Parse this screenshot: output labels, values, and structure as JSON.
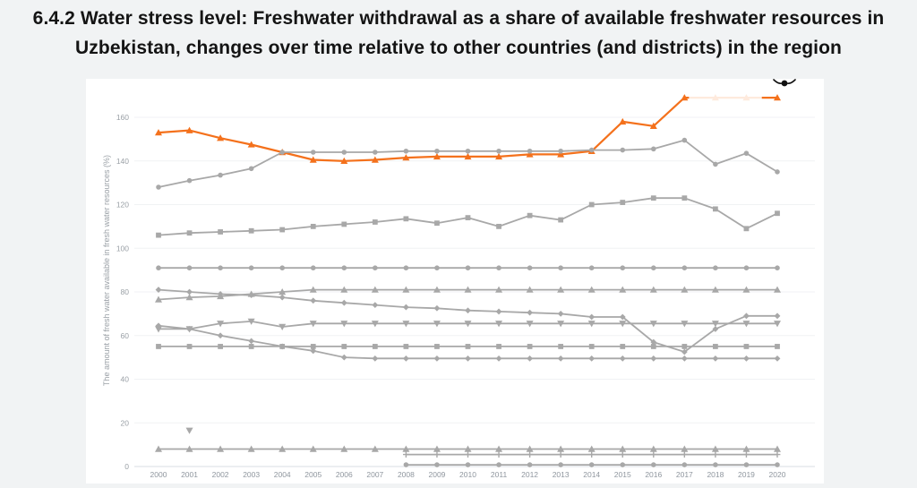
{
  "title": {
    "line1": "6.4.2 Water stress level: Freshwater withdrawal as a share of available freshwater resources in",
    "line2": "Uzbekistan, changes over time relative to other countries (and districts) in the region"
  },
  "colors": {
    "page_background": "#f1f3f4",
    "card_background": "#ffffff",
    "highlight_orange": "#f4711c",
    "gray_line": "#a8a8a8",
    "gray_marker": "#9b9b9b",
    "gridline": "#f0f2f4",
    "axis_line": "#d9dde3",
    "tick_label": "#8f969e",
    "axis_title": "#9aa0a6"
  },
  "chart_data": {
    "type": "line",
    "title": "6.4.2 Water stress level: Freshwater withdrawal as a share of available freshwater resources in Uzbekistan, changes over time relative to other countries (and districts) in the region",
    "xlabel": "",
    "ylabel": "The amount of fresh water available in fresh water resources (%)",
    "x": [
      2000,
      2001,
      2002,
      2003,
      2004,
      2005,
      2006,
      2007,
      2008,
      2009,
      2010,
      2011,
      2012,
      2013,
      2014,
      2015,
      2016,
      2017,
      2018,
      2019,
      2020
    ],
    "y_ticks": [
      0,
      20,
      40,
      60,
      80,
      100,
      120,
      140,
      160
    ],
    "ylim": [
      0,
      178
    ],
    "grid": "horizontal",
    "legend": "none",
    "series": [
      {
        "name": "highlighted-country-orange",
        "color": "#f4711c",
        "marker": "triangle-up",
        "width": 2.2,
        "values": [
          153,
          154,
          150.5,
          147.5,
          144,
          140.5,
          140,
          140.5,
          141.5,
          142,
          142,
          142,
          143,
          143,
          144.5,
          158,
          156,
          169,
          169,
          169,
          169
        ],
        "fade_segment": {
          "from_x": 2017,
          "to_x": 2019.5,
          "overlay_opacity": 0.85
        }
      },
      {
        "name": "gray-circle-rising-145",
        "color": "#a8a8a8",
        "marker": "circle",
        "width": 1.8,
        "values": [
          128,
          131,
          133.5,
          136.5,
          144,
          144,
          144,
          144,
          144.5,
          144.5,
          144.5,
          144.5,
          144.5,
          144.5,
          145,
          145,
          145.5,
          149.5,
          138.5,
          143.5,
          135
        ]
      },
      {
        "name": "gray-square-mid-110",
        "color": "#a8a8a8",
        "marker": "square",
        "width": 1.8,
        "values": [
          106,
          107,
          107.5,
          108,
          108.5,
          110,
          111,
          112,
          113.5,
          111.5,
          114,
          110,
          115,
          113,
          120,
          121,
          123,
          123,
          118,
          109,
          116
        ]
      },
      {
        "name": "gray-circle-flat-91",
        "color": "#a8a8a8",
        "marker": "circle",
        "width": 1.8,
        "values": [
          91,
          91,
          91,
          91,
          91,
          91,
          91,
          91,
          91,
          91,
          91,
          91,
          91,
          91,
          91,
          91,
          91,
          91,
          91,
          91,
          91
        ]
      },
      {
        "name": "gray-triangle-flat-81",
        "color": "#a8a8a8",
        "marker": "triangle-up",
        "width": 1.8,
        "values": [
          76.5,
          77.5,
          78,
          79,
          80,
          81,
          81,
          81,
          81,
          81,
          81,
          81,
          81,
          81,
          81,
          81,
          81,
          81,
          81,
          81,
          81
        ]
      },
      {
        "name": "gray-diamond-declining",
        "color": "#a8a8a8",
        "marker": "diamond",
        "width": 1.8,
        "values": [
          81,
          80,
          79,
          78.5,
          77.5,
          76,
          75,
          74,
          73,
          72.5,
          71.5,
          71,
          70.5,
          70,
          68.5,
          68.5,
          57,
          52.5,
          63,
          69,
          69
        ]
      },
      {
        "name": "gray-tridown-flat-65",
        "color": "#a8a8a8",
        "marker": "triangle-down",
        "width": 1.8,
        "values": [
          63,
          63,
          65.5,
          66.5,
          64,
          65.5,
          65.5,
          65.5,
          65.5,
          65.5,
          65.5,
          65.5,
          65.5,
          65.5,
          65.5,
          65.5,
          65.5,
          65.5,
          65.5,
          65.5,
          65.5
        ]
      },
      {
        "name": "gray-square-flat-55",
        "color": "#a8a8a8",
        "marker": "square",
        "width": 1.8,
        "values": [
          55,
          55,
          55,
          55,
          55,
          55,
          55,
          55,
          55,
          55,
          55,
          55,
          55,
          55,
          55,
          55,
          55,
          55,
          55,
          55,
          55
        ]
      },
      {
        "name": "gray-diamond-to-50",
        "color": "#a8a8a8",
        "marker": "diamond",
        "width": 1.8,
        "values": [
          64.5,
          63,
          60,
          57.5,
          55,
          53,
          50,
          49.5,
          49.5,
          49.5,
          49.5,
          49.5,
          49.5,
          49.5,
          49.5,
          49.5,
          49.5,
          49.5,
          49.5,
          49.5,
          49.5
        ]
      },
      {
        "name": "gray-triangle-flat-8",
        "color": "#a8a8a8",
        "marker": "triangle-up",
        "width": 1.8,
        "values": [
          8,
          8,
          8,
          8,
          8,
          8,
          8,
          8,
          8,
          8,
          8,
          8,
          8,
          8,
          8,
          8,
          8,
          8,
          8,
          8,
          8
        ]
      },
      {
        "name": "gray-plus-flat-5",
        "color": "#a8a8a8",
        "marker": "plus",
        "width": 1.8,
        "values": [
          null,
          null,
          null,
          null,
          null,
          null,
          null,
          null,
          5.5,
          5.5,
          5.5,
          5.5,
          5.5,
          5.5,
          5.5,
          5.5,
          5.5,
          5.5,
          5.5,
          5.5,
          5.5
        ]
      },
      {
        "name": "gray-circle-flat-1",
        "color": "#a8a8a8",
        "marker": "circle",
        "width": 1.8,
        "values": [
          null,
          null,
          null,
          null,
          null,
          null,
          null,
          null,
          0.8,
          0.8,
          0.8,
          0.8,
          0.8,
          0.8,
          0.8,
          0.8,
          0.8,
          0.8,
          0.8,
          0.8,
          0.8
        ]
      }
    ],
    "point_annotations": [
      {
        "name": "isolated-tridown-point",
        "x": 2001,
        "y": 16.5,
        "marker": "triangle-down",
        "color": "#a8a8a8"
      }
    ]
  }
}
